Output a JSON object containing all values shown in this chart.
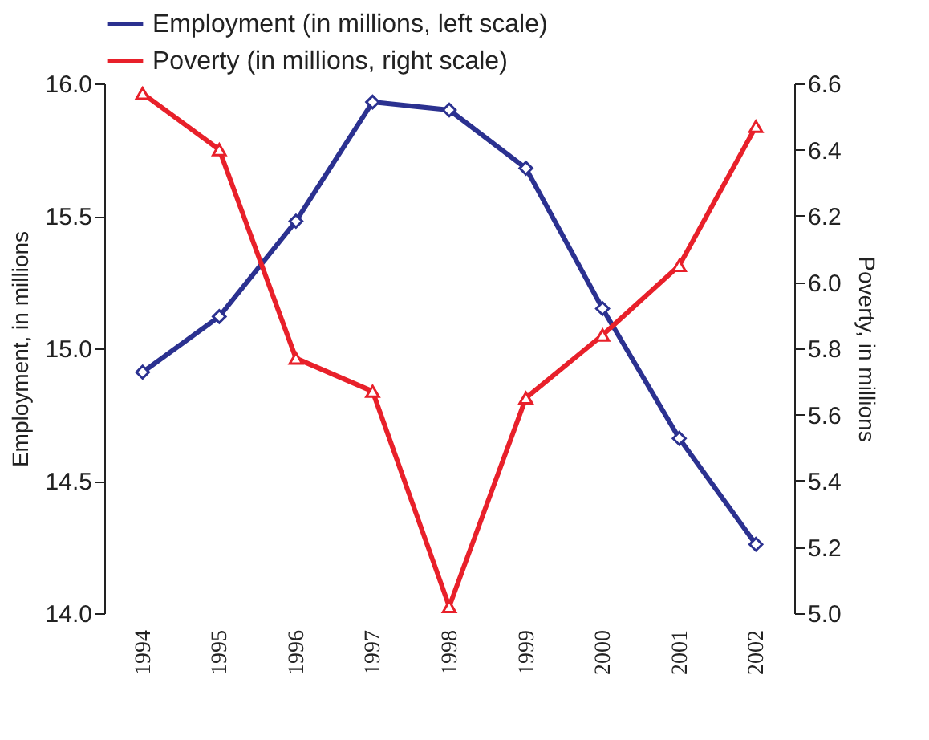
{
  "chart_data": {
    "type": "line",
    "categories": [
      "1994",
      "1995",
      "1996",
      "1997",
      "1998",
      "1999",
      "2000",
      "2001",
      "2002"
    ],
    "ylabel": "Employment, in millions",
    "y2label": "Poverty, in millions",
    "ylim": [
      14.0,
      16.0
    ],
    "yticks": [
      {
        "value": 14.0,
        "label": "14.0"
      },
      {
        "value": 14.5,
        "label": "14.5"
      },
      {
        "value": 15.0,
        "label": "15.0"
      },
      {
        "value": 15.5,
        "label": "15.5"
      },
      {
        "value": 16.0,
        "label": "16.0"
      }
    ],
    "y2lim": [
      5.0,
      6.6
    ],
    "y2ticks": [
      {
        "value": 5.0,
        "label": "5.0"
      },
      {
        "value": 5.2,
        "label": "5.2"
      },
      {
        "value": 5.4,
        "label": "5.4"
      },
      {
        "value": 5.6,
        "label": "5.6"
      },
      {
        "value": 5.8,
        "label": "5.8"
      },
      {
        "value": 6.0,
        "label": "6.0"
      },
      {
        "value": 6.2,
        "label": "6.2"
      },
      {
        "value": 6.4,
        "label": "6.4"
      },
      {
        "value": 6.6,
        "label": "6.6"
      }
    ],
    "legend": "top",
    "grid": false,
    "series": [
      {
        "name": "Employment (in millions, left scale)",
        "color": "#2b3190",
        "marker": "diamond",
        "values": [
          14.91,
          15.12,
          15.48,
          15.93,
          15.9,
          15.68,
          15.15,
          14.66,
          14.26
        ]
      },
      {
        "name": "Poverty (in millions, right scale)",
        "color": "#e8202a",
        "marker": "triangle",
        "axis": "y2",
        "values": [
          6.57,
          6.4,
          5.77,
          5.67,
          5.02,
          5.65,
          5.84,
          6.05,
          6.47
        ]
      }
    ]
  }
}
